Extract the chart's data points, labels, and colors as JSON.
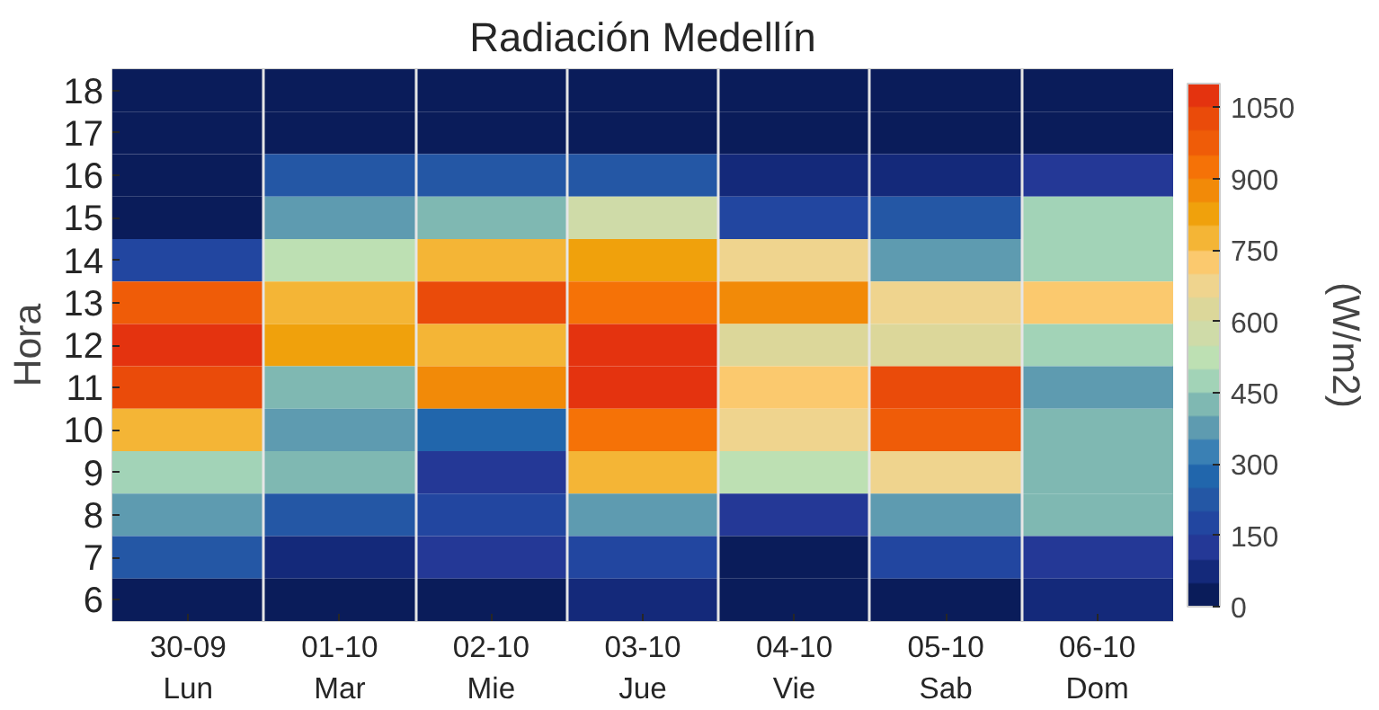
{
  "chart_data": {
    "type": "heatmap",
    "title": "Radiación Medellín",
    "ylabel": "Hora",
    "clabel": "(W/m2)",
    "categories": [
      "30-09\nLun",
      "01-10\nMar",
      "02-10\nMie",
      "03-10\nJue",
      "04-10\nVie",
      "05-10\nSab",
      "06-10\nDom"
    ],
    "y_categories": [
      "18",
      "17",
      "16",
      "15",
      "14",
      "13",
      "12",
      "11",
      "10",
      "9",
      "8",
      "7",
      "6"
    ],
    "cells": [
      [
        25,
        25,
        25,
        25,
        25,
        25,
        25
      ],
      [
        25,
        25,
        25,
        25,
        25,
        25,
        25
      ],
      [
        25,
        225,
        225,
        225,
        75,
        75,
        125
      ],
      [
        25,
        375,
        425,
        575,
        175,
        225,
        475
      ],
      [
        175,
        525,
        775,
        825,
        675,
        375,
        475
      ],
      [
        975,
        775,
        1025,
        925,
        875,
        675,
        725
      ],
      [
        1075,
        825,
        775,
        1075,
        625,
        625,
        475
      ],
      [
        1025,
        425,
        875,
        1075,
        725,
        1025,
        375
      ],
      [
        775,
        375,
        275,
        925,
        675,
        975,
        425
      ],
      [
        475,
        425,
        125,
        775,
        525,
        675,
        425
      ],
      [
        375,
        225,
        175,
        375,
        125,
        375,
        425
      ],
      [
        225,
        75,
        125,
        175,
        25,
        175,
        125
      ],
      [
        25,
        25,
        25,
        75,
        25,
        25,
        75
      ]
    ],
    "colors": [
      "#0a1c5a",
      "#14297a",
      "#243896",
      "#2246a0",
      "#2457a5",
      "#2166ac",
      "#3a80b4",
      "#5e9bb0",
      "#7fb8b2",
      "#a2d3b7",
      "#bde0b3",
      "#cfdba8",
      "#dcd79a",
      "#efd48e",
      "#fbc96e",
      "#f4b536",
      "#f0a10c",
      "#f28a08",
      "#f57207",
      "#ef5c08",
      "#ea4b0a",
      "#e4330f"
    ],
    "clim": [
      0,
      1100
    ],
    "cticks": [
      0,
      150,
      300,
      450,
      600,
      750,
      900,
      1050
    ],
    "grid": "x"
  }
}
